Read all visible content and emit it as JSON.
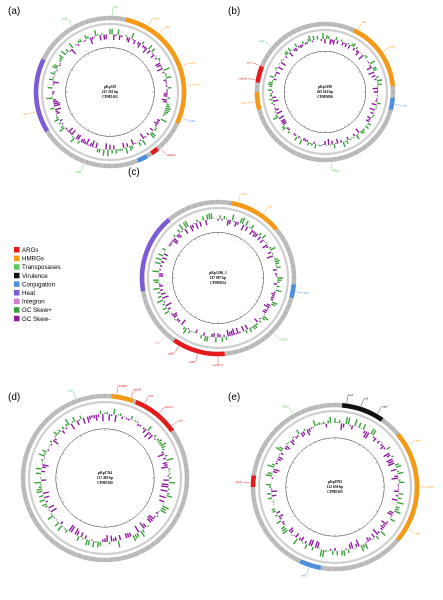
{
  "legend": [
    {
      "label": "ARGs",
      "color": "#e41a1c"
    },
    {
      "label": "HMRGs",
      "color": "#f59a16"
    },
    {
      "label": "Transposases",
      "color": "#5cc85a"
    },
    {
      "label": "Virulence",
      "color": "#111111"
    },
    {
      "label": "Conjugation",
      "color": "#4f8fe0"
    },
    {
      "label": "Heat",
      "color": "#7b5cd6"
    },
    {
      "label": "Integron",
      "color": "#d47bd3"
    },
    {
      "label": "GC Skew+",
      "color": "#3aa13a"
    },
    {
      "label": "GC Skew-",
      "color": "#8e1b9e"
    }
  ],
  "colors": {
    "backbone": "#bdbdbd",
    "backbone_dark": "#9a9a9a",
    "skew_plus": "#3aa13a",
    "skew_minus": "#8e1b9e"
  },
  "panels": [
    {
      "letter": "(a)",
      "name": "pKp319",
      "size": "215 261 bp",
      "accession": "CP085102",
      "arcs": [
        {
          "from": 12,
          "to": 115,
          "color": "#f59a16"
        },
        {
          "from": 150,
          "to": 158,
          "color": "#4f8fe0"
        },
        {
          "from": 238,
          "to": 296,
          "color": "#7b5cd6"
        },
        {
          "from": 140,
          "to": 146,
          "color": "#e41a1c"
        }
      ],
      "labels": [
        {
          "text": "tnpA",
          "angle": 2,
          "color": "#5cc85a"
        },
        {
          "text": "merA",
          "angle": 30,
          "color": "#f59a16"
        },
        {
          "text": "merP",
          "angle": 40,
          "color": "#f59a16"
        },
        {
          "text": "arsC",
          "angle": 70,
          "color": "#f59a16"
        },
        {
          "text": "pcoA",
          "angle": 85,
          "color": "#f59a16"
        },
        {
          "text": "traB",
          "angle": 110,
          "color": "#4f8fe0"
        },
        {
          "text": "blaSHV",
          "angle": 138,
          "color": "#e41a1c"
        },
        {
          "text": "IS26",
          "angle": 200,
          "color": "#5cc85a"
        },
        {
          "text": "terZ",
          "angle": 255,
          "color": "#f59a16"
        },
        {
          "text": "tnpR",
          "angle": 330,
          "color": "#5cc85a"
        }
      ]
    },
    {
      "letter": "(b)",
      "name": "pKp3198",
      "size": "265 616 bp",
      "accession": "CP085096",
      "arcs": [
        {
          "from": 25,
          "to": 85,
          "color": "#f59a16"
        },
        {
          "from": 95,
          "to": 105,
          "color": "#4f8fe0"
        },
        {
          "from": 255,
          "to": 270,
          "color": "#f59a16"
        },
        {
          "from": 278,
          "to": 292,
          "color": "#e41a1c"
        }
      ],
      "labels": [
        {
          "text": "silE",
          "angle": 28,
          "color": "#f59a16"
        },
        {
          "text": "copA",
          "angle": 55,
          "color": "#f59a16"
        },
        {
          "text": "traI",
          "angle": 100,
          "color": "#4f8fe0"
        },
        {
          "text": "ISKpn",
          "angle": 175,
          "color": "#5cc85a"
        },
        {
          "text": "arsR",
          "angle": 262,
          "color": "#f59a16"
        },
        {
          "text": "mph(A)",
          "angle": 280,
          "color": "#e41a1c"
        },
        {
          "text": "sul1",
          "angle": 292,
          "color": "#e41a1c"
        },
        {
          "text": "tnpA",
          "angle": 310,
          "color": "#5cc85a"
        }
      ]
    },
    {
      "letter": "(c)",
      "name": "pKp1206_1",
      "size": "187 887 bp",
      "accession": "CP085034",
      "arcs": [
        {
          "from": 10,
          "to": 50,
          "color": "#f59a16"
        },
        {
          "from": 95,
          "to": 105,
          "color": "#4f8fe0"
        },
        {
          "from": 175,
          "to": 215,
          "color": "#e41a1c"
        },
        {
          "from": 260,
          "to": 320,
          "color": "#7b5cd6"
        }
      ],
      "labels": [
        {
          "text": "merR",
          "angle": 15,
          "color": "#f59a16"
        },
        {
          "text": "silS",
          "angle": 35,
          "color": "#f59a16"
        },
        {
          "text": "traN",
          "angle": 100,
          "color": "#4f8fe0"
        },
        {
          "text": "IS5075",
          "angle": 135,
          "color": "#5cc85a"
        },
        {
          "text": "aac(6')-Ib",
          "angle": 180,
          "color": "#e41a1c"
        },
        {
          "text": "qnrB1",
          "angle": 195,
          "color": "#e41a1c"
        },
        {
          "text": "catB3",
          "angle": 210,
          "color": "#e41a1c"
        },
        {
          "text": "intI1",
          "angle": 222,
          "color": "#d47bd3"
        }
      ]
    },
    {
      "letter": "(d)",
      "name": "pKp1764",
      "size": "137 483 bp",
      "accession": "CP085100",
      "arcs": [
        {
          "from": 5,
          "to": 20,
          "color": "#f59a16"
        },
        {
          "from": 22,
          "to": 55,
          "color": "#e41a1c"
        }
      ],
      "labels": [
        {
          "text": "blaTEM",
          "angle": 8,
          "color": "#e41a1c"
        },
        {
          "text": "aph(6)",
          "angle": 18,
          "color": "#e41a1c"
        },
        {
          "text": "strA",
          "angle": 28,
          "color": "#e41a1c"
        },
        {
          "text": "dfrA14",
          "angle": 40,
          "color": "#e41a1c"
        },
        {
          "text": "sul2",
          "angle": 52,
          "color": "#e41a1c"
        },
        {
          "text": "tnpA",
          "angle": 340,
          "color": "#5cc85a"
        }
      ]
    },
    {
      "letter": "(e)",
      "name": "pKp0792",
      "size": "122 656 bp",
      "accession": "CP085105",
      "arcs": [
        {
          "from": 5,
          "to": 35,
          "color": "#111111"
        },
        {
          "from": 50,
          "to": 130,
          "color": "#f59a16"
        },
        {
          "from": 190,
          "to": 205,
          "color": "#4f8fe0"
        },
        {
          "from": 270,
          "to": 278,
          "color": "#e41a1c"
        }
      ],
      "labels": [
        {
          "text": "iucA",
          "angle": 8,
          "color": "#111111"
        },
        {
          "text": "iutA",
          "angle": 18,
          "color": "#111111"
        },
        {
          "text": "rmpA",
          "angle": 30,
          "color": "#111111"
        },
        {
          "text": "terW",
          "angle": 60,
          "color": "#f59a16"
        },
        {
          "text": "pbrA",
          "angle": 90,
          "color": "#f59a16"
        },
        {
          "text": "silP",
          "angle": 120,
          "color": "#f59a16"
        },
        {
          "text": "traD",
          "angle": 198,
          "color": "#4f8fe0"
        },
        {
          "text": "tet(A)",
          "angle": 273,
          "color": "#e41a1c"
        },
        {
          "text": "IS903",
          "angle": 330,
          "color": "#5cc85a"
        }
      ]
    }
  ]
}
